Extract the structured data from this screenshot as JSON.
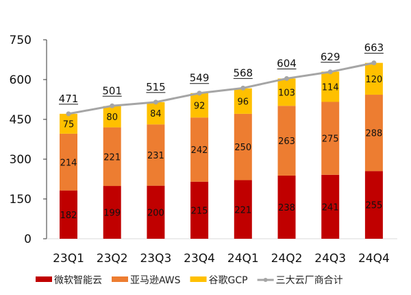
{
  "chart_data": {
    "type": "bar",
    "stacked": true,
    "categories": [
      "23Q1",
      "23Q2",
      "23Q3",
      "23Q4",
      "24Q1",
      "24Q2",
      "24Q3",
      "24Q4"
    ],
    "series": [
      {
        "name": "微软智能云",
        "color": "#C00000",
        "values": [
          182,
          199,
          200,
          215,
          221,
          238,
          241,
          255
        ]
      },
      {
        "name": "亚马逊AWS",
        "color": "#ED7D31",
        "values": [
          214,
          221,
          231,
          242,
          250,
          263,
          275,
          288
        ]
      },
      {
        "name": "谷歌GCP",
        "color": "#FFC000",
        "values": [
          75,
          80,
          84,
          92,
          96,
          103,
          114,
          120
        ]
      }
    ],
    "line_series": {
      "name": "三大云厂商合计",
      "color": "#A5A5A5",
      "values": [
        471,
        501,
        515,
        549,
        568,
        604,
        629,
        663
      ]
    },
    "ylim": [
      0,
      750
    ],
    "yticks": [
      0,
      150,
      300,
      450,
      600,
      750
    ],
    "grid": false,
    "legend": "bottom"
  }
}
